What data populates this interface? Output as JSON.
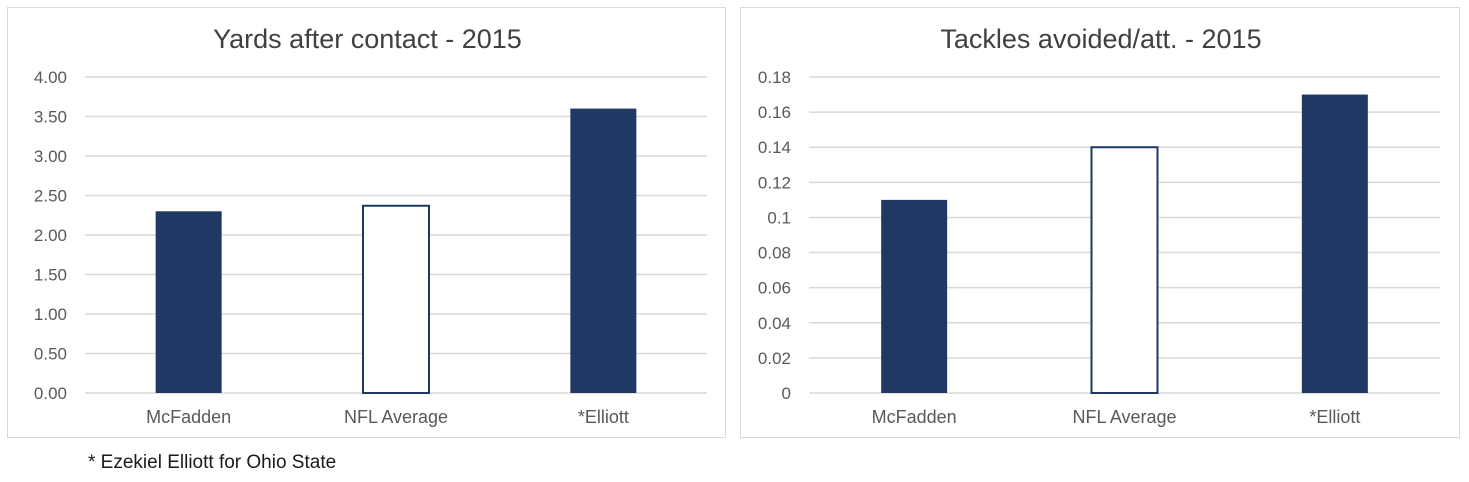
{
  "chart_data": [
    {
      "type": "bar",
      "title": "Yards after contact - 2015",
      "categories": [
        "McFadden",
        "NFL Average",
        "*Elliott"
      ],
      "values": [
        2.3,
        2.37,
        3.6
      ],
      "ylim": [
        0,
        4
      ],
      "yticks": [
        "0.00",
        "0.50",
        "1.00",
        "1.50",
        "2.00",
        "2.50",
        "3.00",
        "3.50",
        "4.00"
      ],
      "grid": true,
      "bar_styles": [
        "filled",
        "outline",
        "filled"
      ],
      "colors": {
        "fill": "#1f3864",
        "grid": "#d9d9d9"
      }
    },
    {
      "type": "bar",
      "title": "Tackles avoided/att. - 2015",
      "categories": [
        "McFadden",
        "NFL Average",
        "*Elliott"
      ],
      "values": [
        0.11,
        0.14,
        0.17
      ],
      "ylim": [
        0,
        0.18
      ],
      "yticks": [
        "0",
        "0.02",
        "0.04",
        "0.06",
        "0.08",
        "0.1",
        "0.12",
        "0.14",
        "0.16",
        "0.18"
      ],
      "grid": true,
      "bar_styles": [
        "filled",
        "outline",
        "filled"
      ],
      "colors": {
        "fill": "#1f3864",
        "grid": "#d9d9d9"
      }
    }
  ],
  "footnote": "* Ezekiel Elliott for Ohio State"
}
